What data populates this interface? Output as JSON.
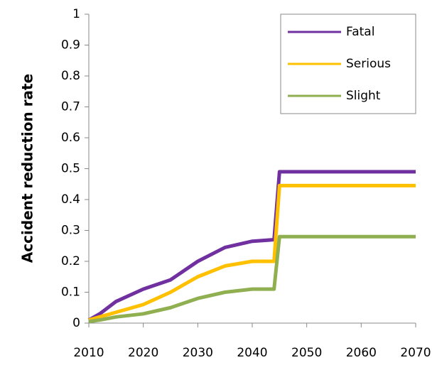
{
  "chart_data": {
    "type": "line",
    "y_label": "Accident reduction rate",
    "x": [
      2010,
      2012,
      2015,
      2020,
      2025,
      2030,
      2035,
      2040,
      2044,
      2045,
      2070
    ],
    "series": [
      {
        "name": "Fatal",
        "color": "#7030a0",
        "values": [
          0.01,
          0.03,
          0.07,
          0.11,
          0.14,
          0.2,
          0.245,
          0.265,
          0.27,
          0.49,
          0.49
        ]
      },
      {
        "name": "Serious",
        "color": "#ffc000",
        "values": [
          0.01,
          0.02,
          0.035,
          0.06,
          0.1,
          0.15,
          0.185,
          0.2,
          0.2,
          0.445,
          0.445
        ]
      },
      {
        "name": "Slight",
        "color": "#8faf50",
        "values": [
          0.005,
          0.01,
          0.02,
          0.03,
          0.05,
          0.08,
          0.1,
          0.11,
          0.11,
          0.28,
          0.28
        ]
      }
    ],
    "xlim": [
      2010,
      2070
    ],
    "xticks": [
      2010,
      2020,
      2030,
      2040,
      2050,
      2060,
      2070
    ],
    "ylim": [
      0,
      1
    ],
    "yticks": [
      0,
      0.1,
      0.2,
      0.3,
      0.4,
      0.5,
      0.6,
      0.7,
      0.8,
      0.9,
      1
    ],
    "legend": "top-right"
  }
}
